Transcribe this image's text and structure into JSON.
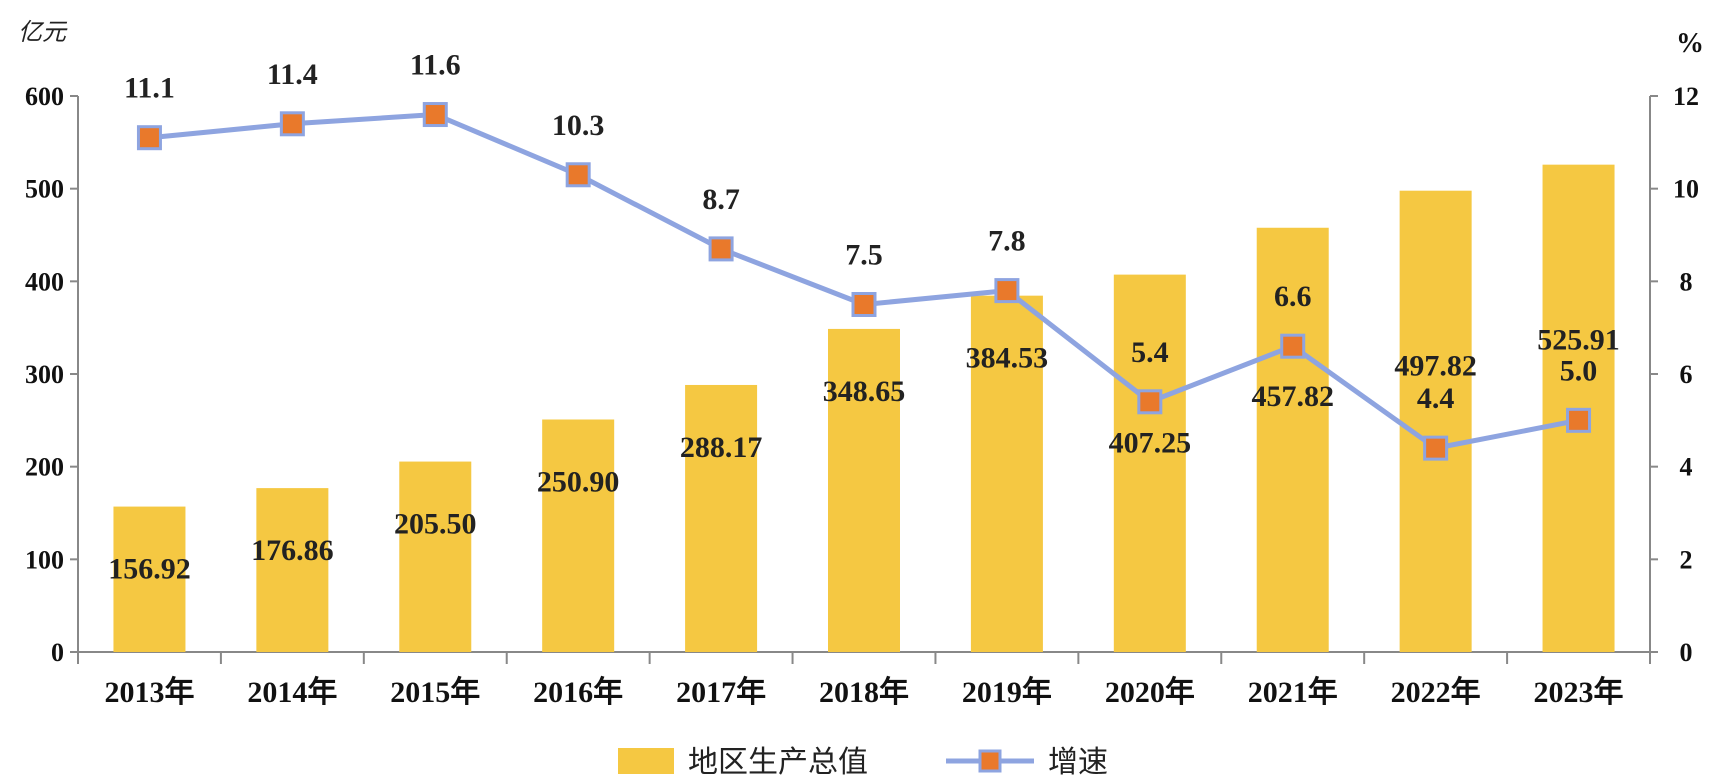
{
  "chart_data": {
    "type": "bar+line",
    "categories": [
      "2013年",
      "2014年",
      "2015年",
      "2016年",
      "2017年",
      "2018年",
      "2019年",
      "2020年",
      "2021年",
      "2022年",
      "2023年"
    ],
    "series": [
      {
        "name": "地区生产总值",
        "type": "bar",
        "axis": "left",
        "color": "#F5C842",
        "values": [
          156.92,
          176.86,
          205.5,
          250.9,
          288.17,
          348.65,
          384.53,
          407.25,
          457.82,
          497.82,
          525.91
        ],
        "labels": [
          "156.92",
          "176.86",
          "205.50",
          "250.90",
          "288.17",
          "348.65",
          "384.53",
          "407.25",
          "457.82",
          "497.82",
          "525.91"
        ]
      },
      {
        "name": "增速",
        "type": "line",
        "axis": "right",
        "color": "#8EA4E0",
        "marker_color": "#E9792B",
        "values": [
          11.1,
          11.4,
          11.6,
          10.3,
          8.7,
          7.5,
          7.8,
          5.4,
          6.6,
          4.4,
          5.0
        ],
        "labels": [
          "11.1",
          "11.4",
          "11.6",
          "10.3",
          "8.7",
          "7.5",
          "7.8",
          "5.4",
          "6.6",
          "4.4",
          "5.0"
        ]
      }
    ],
    "left_axis": {
      "unit": "亿元",
      "min": 0,
      "max": 600,
      "ticks": [
        "0",
        "100",
        "200",
        "300",
        "400",
        "500",
        "600"
      ]
    },
    "right_axis": {
      "unit": "%",
      "min": 0,
      "max": 12,
      "ticks": [
        "0",
        "2",
        "4",
        "6",
        "8",
        "10",
        "12"
      ]
    },
    "legend": {
      "position": "bottom-center",
      "items": [
        "地区生产总值",
        "增速"
      ]
    },
    "grid": false
  }
}
